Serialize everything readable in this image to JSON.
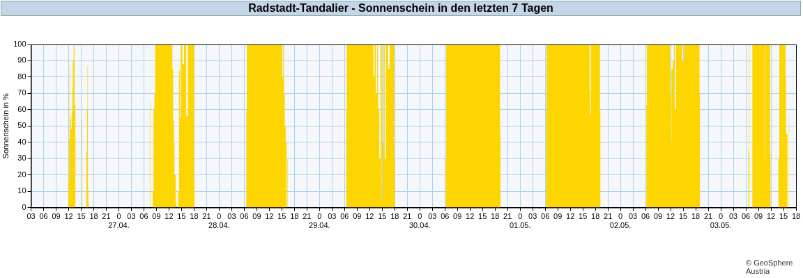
{
  "chart_data": {
    "type": "area",
    "title": "Radstadt-Tandalier - Sonnenschein in den letzten 7 Tagen",
    "ylabel": "Sonnenschein in %",
    "annotations": [
      "© GeoSphere Austria"
    ],
    "xlim": [
      "--04-26T03:00",
      "--05-03T18:00"
    ],
    "ylim": [
      0,
      100
    ],
    "yticks": [
      0,
      10,
      20,
      30,
      40,
      50,
      60,
      70,
      80,
      90,
      100
    ],
    "grid": true,
    "legend": false,
    "marker": "none",
    "xticks": [
      {
        "value": "--04-26T03:00",
        "label": "03"
      },
      {
        "value": "--04-26T06:00",
        "label": "06"
      },
      {
        "value": "--04-26T09:00",
        "label": "09"
      },
      {
        "value": "--04-26T12:00",
        "label": "12"
      },
      {
        "value": "--04-26T15:00",
        "label": "15"
      },
      {
        "value": "--04-26T18:00",
        "label": "18"
      },
      {
        "value": "--04-26T21:00",
        "label": "21"
      },
      {
        "value": "--04-27T00:00",
        "label": "0\n27.04."
      },
      {
        "value": "--04-27T03:00",
        "label": "03"
      },
      {
        "value": "--04-27T06:00",
        "label": "06"
      },
      {
        "value": "--04-27T09:00",
        "label": "09"
      },
      {
        "value": "--04-27T12:00",
        "label": "12"
      },
      {
        "value": "--04-27T15:00",
        "label": "15"
      },
      {
        "value": "--04-27T18:00",
        "label": "18"
      },
      {
        "value": "--04-27T21:00",
        "label": "21"
      },
      {
        "value": "--04-28T00:00",
        "label": "0\n28.04."
      },
      {
        "value": "--04-28T03:00",
        "label": "03"
      },
      {
        "value": "--04-28T06:00",
        "label": "06"
      },
      {
        "value": "--04-28T09:00",
        "label": "09"
      },
      {
        "value": "--04-28T12:00",
        "label": "12"
      },
      {
        "value": "--04-28T15:00",
        "label": "15"
      },
      {
        "value": "--04-28T18:00",
        "label": "18"
      },
      {
        "value": "--04-28T21:00",
        "label": "21"
      },
      {
        "value": "--04-29T00:00",
        "label": "0\n29.04."
      },
      {
        "value": "--04-29T03:00",
        "label": "03"
      },
      {
        "value": "--04-29T06:00",
        "label": "06"
      },
      {
        "value": "--04-29T09:00",
        "label": "09"
      },
      {
        "value": "--04-29T12:00",
        "label": "12"
      },
      {
        "value": "--04-29T15:00",
        "label": "15"
      },
      {
        "value": "--04-29T18:00",
        "label": "18"
      },
      {
        "value": "--04-29T21:00",
        "label": "21"
      },
      {
        "value": "--04-30T00:00",
        "label": "0\n30.04."
      },
      {
        "value": "--04-30T03:00",
        "label": "03"
      },
      {
        "value": "--04-30T06:00",
        "label": "06"
      },
      {
        "value": "--04-30T09:00",
        "label": "09"
      },
      {
        "value": "--04-30T12:00",
        "label": "12"
      },
      {
        "value": "--04-30T15:00",
        "label": "15"
      },
      {
        "value": "--04-30T18:00",
        "label": "18"
      },
      {
        "value": "--04-30T21:00",
        "label": "21"
      },
      {
        "value": "--05-01T00:00",
        "label": "0\n01.05."
      },
      {
        "value": "--05-01T03:00",
        "label": "03"
      },
      {
        "value": "--05-01T06:00",
        "label": "06"
      },
      {
        "value": "--05-01T09:00",
        "label": "09"
      },
      {
        "value": "--05-01T12:00",
        "label": "12"
      },
      {
        "value": "--05-01T15:00",
        "label": "15"
      },
      {
        "value": "--05-01T18:00",
        "label": "18"
      },
      {
        "value": "--05-01T21:00",
        "label": "21"
      },
      {
        "value": "--05-02T00:00",
        "label": "0\n02.05."
      },
      {
        "value": "--05-02T03:00",
        "label": "03"
      },
      {
        "value": "--05-02T06:00",
        "label": "06"
      },
      {
        "value": "--05-02T09:00",
        "label": "09"
      },
      {
        "value": "--05-02T12:00",
        "label": "12"
      },
      {
        "value": "--05-02T15:00",
        "label": "15"
      },
      {
        "value": "--05-02T18:00",
        "label": "18"
      },
      {
        "value": "--05-02T21:00",
        "label": "21"
      },
      {
        "value": "--05-03T00:00",
        "label": "0\n03.05."
      },
      {
        "value": "--05-03T03:00",
        "label": "03"
      },
      {
        "value": "--05-03T06:00",
        "label": "06"
      },
      {
        "value": "--05-03T09:00",
        "label": "09"
      },
      {
        "value": "--05-03T12:00",
        "label": "12"
      },
      {
        "value": "--05-03T15:00",
        "label": "15"
      },
      {
        "value": "--05-03T18:00",
        "label": "18"
      }
    ],
    "series": [
      {
        "color": "#fdd500",
        "x": [
          "--04-26T11:54",
          "--04-26T11:57",
          "--04-26T12:06",
          "--04-26T12:12",
          "--04-26T12:18",
          "--04-26T12:30",
          "--04-26T12:42",
          "--04-26T12:54",
          "--04-26T13:00",
          "--04-26T13:12",
          "--04-26T13:24",
          "--04-26T13:36",
          "--04-26T15:06",
          "--04-26T15:09",
          "--04-26T15:15",
          "--04-26T16:12",
          "--04-26T16:15",
          "--04-26T16:24",
          "--04-26T16:30",
          "--04-26T16:36",
          "--04-26T16:42",
          "--04-26T16:48",
          "--04-27T07:18",
          "--04-27T07:24",
          "--04-27T07:30",
          "--04-27T08:00",
          "--04-27T08:06",
          "--04-27T08:18",
          "--04-27T08:30",
          "--04-27T08:42",
          "--04-27T12:42",
          "--04-27T12:48",
          "--04-27T13:00",
          "--04-27T13:12",
          "--04-27T13:18",
          "--04-27T13:36",
          "--04-27T13:48",
          "--04-27T14:12",
          "--04-27T14:24",
          "--04-27T14:36",
          "--04-27T14:48",
          "--04-27T15:12",
          "--04-27T15:36",
          "--04-27T16:06",
          "--04-27T16:30",
          "--04-27T17:54",
          "--04-27T18:00",
          "--04-27T18:06",
          "--04-28T06:24",
          "--04-28T06:30",
          "--04-28T06:36",
          "--04-28T14:48",
          "--04-28T15:00",
          "--04-28T15:18",
          "--04-28T15:30",
          "--04-28T15:42",
          "--04-28T15:54",
          "--04-28T16:06",
          "--04-28T16:18",
          "--04-28T16:24",
          "--04-29T06:18",
          "--04-29T06:24",
          "--04-29T06:30",
          "--04-29T12:48",
          "--04-29T12:54",
          "--04-29T13:12",
          "--04-29T13:30",
          "--04-29T13:48",
          "--04-29T14:00",
          "--04-29T14:18",
          "--04-29T14:36",
          "--04-29T14:54",
          "--04-29T15:06",
          "--04-29T15:18",
          "--04-29T15:36",
          "--04-29T15:54",
          "--04-29T16:24",
          "--04-29T16:48",
          "--04-29T17:48",
          "--04-29T17:54",
          "--04-29T18:00",
          "--04-30T06:06",
          "--04-30T06:12",
          "--04-30T06:18",
          "--04-30T19:06",
          "--04-30T19:12",
          "--04-30T19:18",
          "--05-01T06:06",
          "--05-01T06:12",
          "--05-01T06:18",
          "--05-01T16:30",
          "--05-01T16:36",
          "--05-01T16:42",
          "--05-01T16:54",
          "--05-01T18:54",
          "--05-01T19:06",
          "--05-01T19:12",
          "--05-02T06:06",
          "--05-02T06:12",
          "--05-02T06:18",
          "--05-02T11:54",
          "--05-02T12:06",
          "--05-02T12:12",
          "--05-02T12:30",
          "--05-02T12:48",
          "--05-02T13:00",
          "--05-02T13:18",
          "--05-02T14:48",
          "--05-02T15:12",
          "--05-02T18:36",
          "--05-02T18:54",
          "--05-02T19:00",
          "--05-03T06:30",
          "--05-03T06:36",
          "--05-03T06:45",
          "--05-03T06:51",
          "--05-03T07:30",
          "--05-03T07:33",
          "--05-03T10:36",
          "--05-03T10:42",
          "--05-03T11:48",
          "--05-03T11:54",
          "--05-03T13:48",
          "--05-03T14:00",
          "--05-03T15:30",
          "--05-03T15:36",
          "--05-03T15:57",
          "--05-03T16:18",
          "--05-03T16:24"
        ],
        "values": [
          0,
          17,
          42,
          87,
          55,
          48,
          58,
          73,
          90,
          100,
          63,
          0,
          0,
          54,
          0,
          0,
          34,
          60,
          87,
          12,
          3,
          0,
          0,
          65,
          0,
          0,
          10,
          60,
          70,
          100,
          100,
          85,
          53,
          40,
          20,
          3,
          0,
          10,
          84,
          55,
          100,
          88,
          100,
          56,
          100,
          100,
          15,
          0,
          0,
          60,
          100,
          100,
          80,
          100,
          70,
          50,
          40,
          0,
          30,
          0,
          0,
          60,
          100,
          100,
          80,
          100,
          70,
          100,
          60,
          30,
          100,
          5,
          40,
          100,
          30,
          100,
          85,
          100,
          100,
          30,
          0,
          0,
          30,
          100,
          100,
          45,
          0,
          0,
          60,
          100,
          100,
          72,
          57,
          100,
          100,
          60,
          0,
          0,
          63,
          100,
          70,
          40,
          85,
          90,
          100,
          60,
          100,
          90,
          100,
          100,
          70,
          0,
          0,
          35,
          100,
          0,
          0,
          100,
          30,
          100,
          33,
          0,
          30,
          100,
          80,
          45,
          0,
          55,
          0
        ]
      }
    ]
  }
}
